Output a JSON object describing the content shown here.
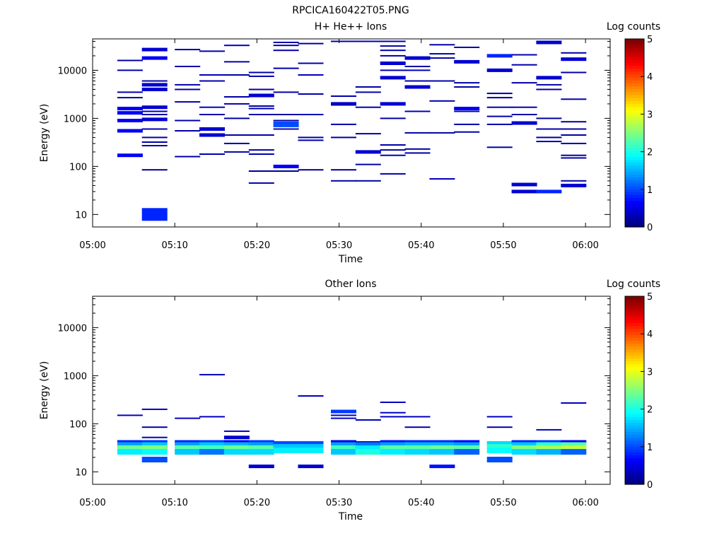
{
  "figure_title": "RPCICA160422T05.PNG",
  "chart_data": [
    {
      "type": "heatmap",
      "title": "H+ He++ Ions",
      "xlabel": "Time",
      "ylabel": "Energy (eV)",
      "x_range": [
        "05:00",
        "06:03"
      ],
      "x_ticks": [
        "05:00",
        "05:10",
        "05:20",
        "05:30",
        "05:40",
        "05:50",
        "06:00"
      ],
      "y_scale": "log",
      "y_range": [
        5.5,
        45000
      ],
      "y_ticks": [
        "10",
        "100",
        "1000",
        "10000"
      ],
      "colorbar": {
        "label": "Log counts",
        "range": [
          0,
          5
        ],
        "ticks": [
          "0",
          "1",
          "2",
          "3",
          "4",
          "5"
        ]
      },
      "time_bins": [
        "05:03",
        "05:06",
        "05:10",
        "05:13",
        "05:16",
        "05:19",
        "05:22",
        "05:25",
        "05:29",
        "05:32",
        "05:35",
        "05:38",
        "05:41",
        "05:44",
        "05:48",
        "05:51",
        "05:54",
        "05:57",
        "06:00"
      ],
      "cells": [
        [
          0,
          16000,
          0.2
        ],
        [
          0,
          10000,
          0.2
        ],
        [
          0,
          3500,
          0.2
        ],
        [
          0,
          2700,
          0.2
        ],
        [
          0,
          1600,
          0.6
        ],
        [
          0,
          1300,
          0.6
        ],
        [
          0,
          900,
          0.6
        ],
        [
          0,
          550,
          0.6
        ],
        [
          0,
          170,
          0.6
        ],
        [
          1,
          27000,
          0.4
        ],
        [
          1,
          18000,
          0.6
        ],
        [
          1,
          6000,
          0.2
        ],
        [
          1,
          5000,
          0.4
        ],
        [
          1,
          4000,
          0.4
        ],
        [
          1,
          1700,
          0.4
        ],
        [
          1,
          1400,
          0.2
        ],
        [
          1,
          1200,
          0.2
        ],
        [
          1,
          950,
          0.4
        ],
        [
          1,
          600,
          0.2
        ],
        [
          1,
          400,
          0.2
        ],
        [
          1,
          320,
          0.2
        ],
        [
          1,
          270,
          0.2
        ],
        [
          1,
          85,
          0.1
        ],
        [
          1,
          10,
          0.8
        ],
        [
          2,
          27000,
          0.2
        ],
        [
          2,
          12000,
          0.2
        ],
        [
          2,
          5000,
          0.2
        ],
        [
          2,
          4000,
          0.2
        ],
        [
          2,
          2200,
          0.2
        ],
        [
          2,
          900,
          0.2
        ],
        [
          2,
          550,
          0.2
        ],
        [
          2,
          160,
          0.2
        ],
        [
          3,
          25000,
          0.2
        ],
        [
          3,
          8000,
          0.3
        ],
        [
          3,
          6000,
          0.2
        ],
        [
          3,
          1700,
          0.3
        ],
        [
          3,
          1200,
          0.2
        ],
        [
          3,
          600,
          0.4
        ],
        [
          3,
          450,
          0.4
        ],
        [
          3,
          180,
          0.2
        ],
        [
          4,
          33000,
          0.3
        ],
        [
          4,
          15000,
          0.2
        ],
        [
          4,
          8000,
          0.2
        ],
        [
          4,
          2800,
          0.2
        ],
        [
          4,
          2000,
          0.2
        ],
        [
          4,
          1000,
          0.2
        ],
        [
          4,
          450,
          0.2
        ],
        [
          4,
          300,
          0.2
        ],
        [
          4,
          200,
          0.2
        ],
        [
          5,
          9000,
          0.2
        ],
        [
          5,
          7500,
          0.2
        ],
        [
          5,
          4000,
          0.2
        ],
        [
          5,
          3000,
          0.4
        ],
        [
          5,
          1800,
          0.2
        ],
        [
          5,
          1600,
          0.2
        ],
        [
          5,
          1200,
          0.2
        ],
        [
          5,
          450,
          0.2
        ],
        [
          5,
          220,
          0.2
        ],
        [
          5,
          180,
          0.2
        ],
        [
          5,
          80,
          0.1
        ],
        [
          5,
          45,
          0.2
        ],
        [
          6,
          38000,
          0.2
        ],
        [
          6,
          33000,
          0.2
        ],
        [
          6,
          26000,
          0.2
        ],
        [
          6,
          11000,
          0.2
        ],
        [
          6,
          3500,
          0.2
        ],
        [
          6,
          1200,
          0.2
        ],
        [
          6,
          900,
          0.2
        ],
        [
          6,
          750,
          1.0
        ],
        [
          6,
          600,
          0.2
        ],
        [
          6,
          100,
          0.6
        ],
        [
          6,
          80,
          0.1
        ],
        [
          7,
          36000,
          0.2
        ],
        [
          7,
          14000,
          0.2
        ],
        [
          7,
          8000,
          0.3
        ],
        [
          7,
          3200,
          0.2
        ],
        [
          7,
          1200,
          0.3
        ],
        [
          7,
          400,
          0.2
        ],
        [
          7,
          350,
          0.2
        ],
        [
          7,
          85,
          0.1
        ],
        [
          8,
          40000,
          0.2
        ],
        [
          8,
          2900,
          0.2
        ],
        [
          8,
          2000,
          0.4
        ],
        [
          8,
          1900,
          0.2
        ],
        [
          8,
          750,
          0.2
        ],
        [
          8,
          400,
          0.2
        ],
        [
          8,
          85,
          0.1
        ],
        [
          8,
          50,
          0.2
        ],
        [
          9,
          40000,
          0.2
        ],
        [
          9,
          4500,
          0.2
        ],
        [
          9,
          3500,
          0.2
        ],
        [
          9,
          1700,
          0.2
        ],
        [
          9,
          480,
          0.2
        ],
        [
          9,
          200,
          0.4
        ],
        [
          9,
          110,
          0.2
        ],
        [
          9,
          50,
          0.2
        ],
        [
          10,
          40000,
          0.2
        ],
        [
          10,
          32000,
          0.2
        ],
        [
          10,
          26000,
          0.2
        ],
        [
          10,
          20000,
          0.2
        ],
        [
          10,
          14000,
          0.4
        ],
        [
          10,
          10000,
          0.2
        ],
        [
          10,
          7000,
          0.4
        ],
        [
          10,
          2000,
          0.4
        ],
        [
          10,
          1000,
          0.2
        ],
        [
          10,
          280,
          0.2
        ],
        [
          10,
          220,
          0.2
        ],
        [
          10,
          170,
          0.2
        ],
        [
          10,
          70,
          0.2
        ],
        [
          11,
          18000,
          0.4
        ],
        [
          11,
          12000,
          0.2
        ],
        [
          11,
          10000,
          0.3
        ],
        [
          11,
          6000,
          0.2
        ],
        [
          11,
          4500,
          0.4
        ],
        [
          11,
          1400,
          0.3
        ],
        [
          11,
          500,
          0.2
        ],
        [
          11,
          230,
          0.2
        ],
        [
          11,
          190,
          0.2
        ],
        [
          12,
          34000,
          0.2
        ],
        [
          12,
          22000,
          0.2
        ],
        [
          12,
          18000,
          0.2
        ],
        [
          12,
          6000,
          0.2
        ],
        [
          12,
          2300,
          0.2
        ],
        [
          12,
          500,
          0.2
        ],
        [
          12,
          55,
          0.3
        ],
        [
          13,
          30000,
          0.2
        ],
        [
          13,
          15000,
          0.4
        ],
        [
          13,
          5500,
          0.2
        ],
        [
          13,
          4500,
          0.2
        ],
        [
          13,
          1600,
          0.6
        ],
        [
          13,
          1400,
          0.2
        ],
        [
          13,
          750,
          0.2
        ],
        [
          13,
          520,
          0.2
        ],
        [
          14,
          20000,
          0.8
        ],
        [
          14,
          10000,
          0.4
        ],
        [
          14,
          3300,
          0.2
        ],
        [
          14,
          2700,
          0.2
        ],
        [
          14,
          1700,
          0.2
        ],
        [
          14,
          1100,
          0.2
        ],
        [
          14,
          750,
          0.2
        ],
        [
          14,
          250,
          0.2
        ],
        [
          15,
          21000,
          0.2
        ],
        [
          15,
          13000,
          0.2
        ],
        [
          15,
          5500,
          0.2
        ],
        [
          15,
          1700,
          0.2
        ],
        [
          15,
          1200,
          0.2
        ],
        [
          15,
          800,
          0.4
        ],
        [
          15,
          42,
          0.4
        ],
        [
          15,
          30,
          0.4
        ],
        [
          16,
          38000,
          0.4
        ],
        [
          16,
          7000,
          0.4
        ],
        [
          16,
          5000,
          0.2
        ],
        [
          16,
          4000,
          0.2
        ],
        [
          16,
          1000,
          0.2
        ],
        [
          16,
          600,
          0.2
        ],
        [
          16,
          400,
          0.2
        ],
        [
          16,
          330,
          0.2
        ],
        [
          16,
          30,
          0.8
        ],
        [
          17,
          23000,
          0.2
        ],
        [
          17,
          17000,
          0.4
        ],
        [
          17,
          9000,
          0.2
        ],
        [
          17,
          2500,
          0.2
        ],
        [
          17,
          850,
          0.2
        ],
        [
          17,
          600,
          0.2
        ],
        [
          17,
          450,
          0.2
        ],
        [
          17,
          300,
          0.2
        ],
        [
          17,
          170,
          0.2
        ],
        [
          17,
          150,
          0.2
        ],
        [
          17,
          50,
          0.2
        ],
        [
          17,
          40,
          0.4
        ]
      ]
    },
    {
      "type": "heatmap",
      "title": "Other Ions",
      "xlabel": "Time",
      "ylabel": "Energy (eV)",
      "x_range": [
        "05:00",
        "06:03"
      ],
      "x_ticks": [
        "05:00",
        "05:10",
        "05:20",
        "05:30",
        "05:40",
        "05:50",
        "06:00"
      ],
      "y_scale": "log",
      "y_range": [
        5.5,
        45000
      ],
      "y_ticks": [
        "10",
        "100",
        "1000",
        "10000"
      ],
      "colorbar": {
        "label": "Log counts",
        "range": [
          0,
          5
        ],
        "ticks": [
          "0",
          "1",
          "2",
          "3",
          "4",
          "5"
        ]
      },
      "time_bins": [
        "05:03",
        "05:06",
        "05:10",
        "05:13",
        "05:16",
        "05:19",
        "05:22",
        "05:25",
        "05:29",
        "05:32",
        "05:35",
        "05:38",
        "05:41",
        "05:44",
        "05:48",
        "05:51",
        "05:54",
        "05:57",
        "06:00"
      ],
      "cells": [
        [
          0,
          150,
          0.3
        ],
        [
          0,
          42,
          0.8
        ],
        [
          0,
          36,
          1.4
        ],
        [
          0,
          31,
          2.4
        ],
        [
          0,
          26,
          1.8
        ],
        [
          1,
          200,
          0.3
        ],
        [
          1,
          85,
          0.2
        ],
        [
          1,
          52,
          0.3
        ],
        [
          1,
          42,
          0.9
        ],
        [
          1,
          36,
          1.6
        ],
        [
          1,
          31,
          2.5
        ],
        [
          1,
          26,
          1.9
        ],
        [
          1,
          18,
          1.0
        ],
        [
          2,
          130,
          0.3
        ],
        [
          2,
          42,
          0.8
        ],
        [
          2,
          36,
          1.4
        ],
        [
          2,
          31,
          2.3
        ],
        [
          2,
          26,
          1.6
        ],
        [
          3,
          1050,
          0.3
        ],
        [
          3,
          140,
          0.3
        ],
        [
          3,
          42,
          0.9
        ],
        [
          3,
          36,
          1.6
        ],
        [
          3,
          31,
          2.2
        ],
        [
          3,
          26,
          1.2
        ],
        [
          4,
          70,
          0.3
        ],
        [
          4,
          52,
          0.4
        ],
        [
          4,
          42,
          0.6
        ],
        [
          4,
          36,
          1.5
        ],
        [
          4,
          31,
          2.4
        ],
        [
          4,
          26,
          1.7
        ],
        [
          5,
          42,
          0.9
        ],
        [
          5,
          36,
          1.4
        ],
        [
          5,
          31,
          2.3
        ],
        [
          5,
          26,
          1.7
        ],
        [
          5,
          13,
          0.4
        ],
        [
          6,
          38,
          1.0
        ],
        [
          6,
          33,
          1.6
        ],
        [
          6,
          28,
          1.8
        ],
        [
          7,
          380,
          0.3
        ],
        [
          7,
          38,
          1.0
        ],
        [
          7,
          33,
          1.6
        ],
        [
          7,
          28,
          1.8
        ],
        [
          7,
          13,
          0.4
        ],
        [
          8,
          180,
          0.9
        ],
        [
          8,
          150,
          0.3
        ],
        [
          8,
          130,
          0.3
        ],
        [
          8,
          42,
          0.5
        ],
        [
          8,
          36,
          1.4
        ],
        [
          8,
          31,
          2.2
        ],
        [
          8,
          26,
          1.6
        ],
        [
          9,
          120,
          0.3
        ],
        [
          9,
          42,
          0.2
        ],
        [
          9,
          36,
          1.2
        ],
        [
          9,
          31,
          1.8
        ],
        [
          9,
          26,
          2.0
        ],
        [
          10,
          280,
          0.3
        ],
        [
          10,
          170,
          0.3
        ],
        [
          10,
          140,
          0.3
        ],
        [
          10,
          42,
          0.7
        ],
        [
          10,
          36,
          1.4
        ],
        [
          10,
          31,
          2.3
        ],
        [
          10,
          26,
          1.8
        ],
        [
          11,
          140,
          0.3
        ],
        [
          11,
          85,
          0.2
        ],
        [
          11,
          42,
          0.8
        ],
        [
          11,
          36,
          1.5
        ],
        [
          11,
          31,
          2.3
        ],
        [
          11,
          26,
          1.7
        ],
        [
          12,
          42,
          0.8
        ],
        [
          12,
          36,
          1.5
        ],
        [
          12,
          31,
          2.4
        ],
        [
          12,
          26,
          1.6
        ],
        [
          12,
          13,
          0.7
        ],
        [
          13,
          42,
          0.6
        ],
        [
          13,
          36,
          1.4
        ],
        [
          13,
          31,
          2.3
        ],
        [
          13,
          26,
          1.1
        ],
        [
          14,
          140,
          0.3
        ],
        [
          14,
          85,
          0.2
        ],
        [
          14,
          38,
          1.7
        ],
        [
          14,
          33,
          2.1
        ],
        [
          14,
          28,
          1.9
        ],
        [
          14,
          18,
          1.0
        ],
        [
          15,
          42,
          0.8
        ],
        [
          15,
          36,
          1.6
        ],
        [
          15,
          31,
          2.5
        ],
        [
          15,
          26,
          1.7
        ],
        [
          16,
          75,
          0.3
        ],
        [
          16,
          42,
          0.9
        ],
        [
          16,
          36,
          2.1
        ],
        [
          16,
          31,
          2.7
        ],
        [
          16,
          26,
          1.5
        ],
        [
          17,
          270,
          0.3
        ],
        [
          17,
          42,
          0.6
        ],
        [
          17,
          36,
          2.3
        ],
        [
          17,
          31,
          2.8
        ],
        [
          17,
          26,
          1.1
        ]
      ]
    }
  ]
}
